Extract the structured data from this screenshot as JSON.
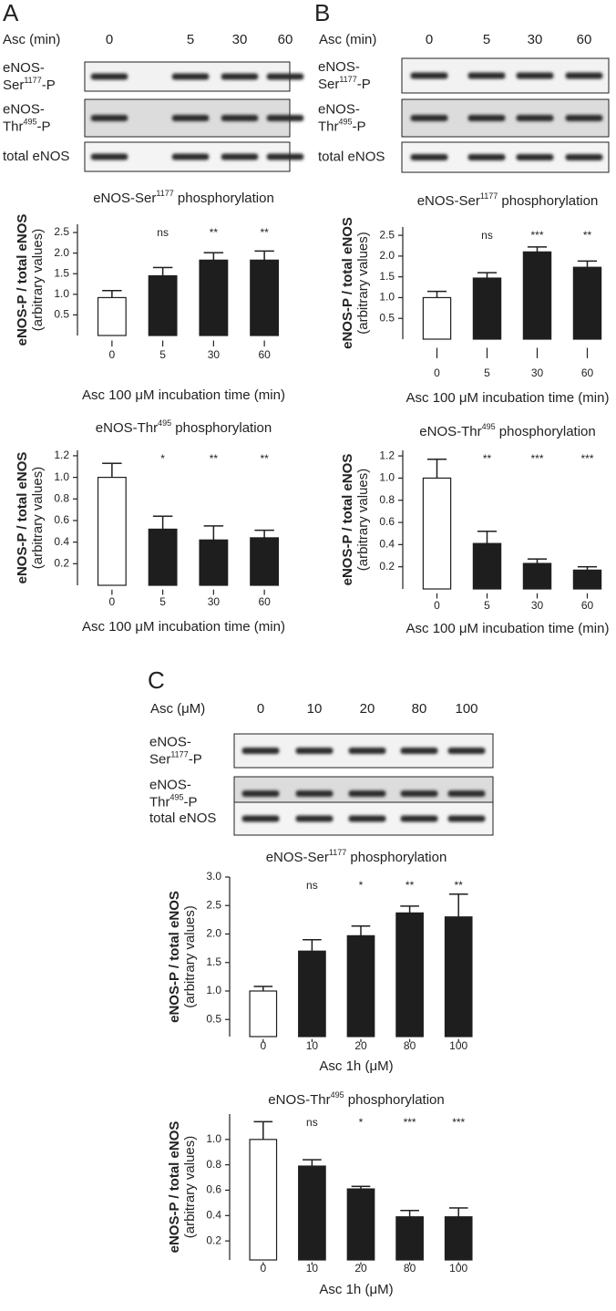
{
  "blots": [
    {
      "panel": "A",
      "header": "Asc (min)",
      "lanes": [
        "0",
        "5",
        "30",
        "60"
      ],
      "rows": [
        {
          "line1": "eNOS-",
          "pre": "Ser",
          "sup": "1177",
          "post": "-P"
        },
        {
          "line1": "eNOS-",
          "pre": "Thr",
          "sup": "495",
          "post": "-P"
        },
        {
          "line1": "total eNOS"
        }
      ]
    },
    {
      "panel": "B",
      "header": "Asc (min)",
      "lanes": [
        "0",
        "5",
        "30",
        "60"
      ],
      "rows": [
        {
          "line1": "eNOS-",
          "pre": "Ser",
          "sup": "1177",
          "post": "-P"
        },
        {
          "line1": "eNOS-",
          "pre": "Thr",
          "sup": "495",
          "post": "-P"
        },
        {
          "line1": "total eNOS"
        }
      ]
    },
    {
      "panel": "C",
      "header": "Asc (μM)",
      "lanes": [
        "0",
        "10",
        "20",
        "80",
        "100"
      ],
      "rows": [
        {
          "line1": "eNOS-",
          "pre": "Ser",
          "sup": "1177",
          "post": "-P"
        },
        {
          "line1": "eNOS-",
          "pre": "Thr",
          "sup": "495",
          "post": "-P"
        },
        {
          "line1": "total eNOS"
        }
      ]
    }
  ],
  "chart_data": [
    {
      "type": "bar",
      "title": {
        "pre": "eNOS-Ser",
        "sup": "1177",
        "post": " phosphorylation"
      },
      "ylabel": "eNOS-P / total eNOS",
      "ylabel2": "(arbitrary values)",
      "xlabel": "Asc 100 μM incubation time (min)",
      "categories": [
        "0",
        "5",
        "30",
        "60"
      ],
      "values": [
        0.92,
        1.45,
        1.83,
        1.83
      ],
      "errors": [
        0.17,
        0.2,
        0.18,
        0.22
      ],
      "colors": [
        "#ffffff",
        "#1e1e1e",
        "#1e1e1e",
        "#1e1e1e"
      ],
      "annotations": [
        null,
        "ns",
        "**",
        "**"
      ],
      "ylim": [
        0,
        2.7
      ],
      "yticks": [
        0.5,
        {
          "value": 1,
          "label": "1.0"
        },
        1.5,
        {
          "value": 2,
          "label": "2.0"
        },
        2.5
      ]
    },
    {
      "type": "bar",
      "title": {
        "pre": "eNOS-Thr",
        "sup": "495",
        "post": " phosphorylation"
      },
      "ylabel": "eNOS-P / total eNOS",
      "ylabel2": "(arbitrary values)",
      "xlabel": "Asc 100 μM incubation time (min)",
      "categories": [
        "0",
        "5",
        "30",
        "60"
      ],
      "values": [
        1.0,
        0.52,
        0.42,
        0.44
      ],
      "errors": [
        0.13,
        0.12,
        0.13,
        0.07
      ],
      "colors": [
        "#ffffff",
        "#1e1e1e",
        "#1e1e1e",
        "#1e1e1e"
      ],
      "annotations": [
        null,
        "*",
        "**",
        "**"
      ],
      "ylim": [
        0,
        1.25
      ],
      "yticks": [
        0.2,
        0.4,
        0.6,
        0.8,
        {
          "value": 1,
          "label": "1.0"
        },
        1.2
      ]
    },
    {
      "type": "bar",
      "title": {
        "pre": "eNOS-Ser",
        "sup": "1177",
        "post": " phosphorylation"
      },
      "ylabel": "eNOS-P / total eNOS",
      "ylabel2": "(arbitrary values)",
      "xlabel": "Asc 100 μM incubation time (min)",
      "categories": [
        "0",
        "5",
        "30",
        "60"
      ],
      "values": [
        1.0,
        1.47,
        2.1,
        1.73
      ],
      "errors": [
        0.15,
        0.13,
        0.12,
        0.15
      ],
      "colors": [
        "#ffffff",
        "#1e1e1e",
        "#1e1e1e",
        "#1e1e1e"
      ],
      "annotations": [
        null,
        "ns",
        "***",
        "**"
      ],
      "ylim": [
        0,
        2.7
      ],
      "yticks": [
        0.5,
        {
          "value": 1,
          "label": "1.0"
        },
        1.5,
        {
          "value": 2,
          "label": "2.0"
        },
        2.5
      ]
    },
    {
      "type": "bar",
      "title": {
        "pre": "eNOS-Thr",
        "sup": "495",
        "post": " phosphorylation"
      },
      "ylabel": "eNOS-P / total eNOS",
      "ylabel2": "(arbitrary values)",
      "xlabel": "Asc 100 μM incubation time (min)",
      "categories": [
        "0",
        "5",
        "30",
        "60"
      ],
      "values": [
        1.0,
        0.41,
        0.23,
        0.17
      ],
      "errors": [
        0.17,
        0.11,
        0.04,
        0.03
      ],
      "colors": [
        "#ffffff",
        "#1e1e1e",
        "#1e1e1e",
        "#1e1e1e"
      ],
      "annotations": [
        null,
        "**",
        "***",
        "***"
      ],
      "ylim": [
        0,
        1.25
      ],
      "yticks": [
        0.2,
        0.4,
        0.6,
        0.8,
        {
          "value": 1,
          "label": "1.0"
        },
        1.2
      ]
    },
    {
      "type": "bar",
      "title": {
        "pre": "eNOS-Ser",
        "sup": "1177",
        "post": " phosphorylation"
      },
      "ylabel": "eNOS-P / total eNOS",
      "ylabel2": "(arbitrary values)",
      "xlabel": "Asc 1h (μM)",
      "categories": [
        "0",
        "10",
        "20",
        "80",
        "100"
      ],
      "values": [
        1.0,
        1.7,
        1.97,
        2.37,
        2.3
      ],
      "errors": [
        0.08,
        0.2,
        0.17,
        0.12,
        0.4
      ],
      "colors": [
        "#ffffff",
        "#1e1e1e",
        "#1e1e1e",
        "#1e1e1e",
        "#1e1e1e"
      ],
      "annotations": [
        null,
        "ns",
        "*",
        "**",
        "**"
      ],
      "ylim": [
        0.2,
        3.0
      ],
      "yticks": [
        0.5,
        {
          "value": 1,
          "label": "1.0"
        },
        1.5,
        {
          "value": 2,
          "label": "2.0"
        },
        2.5,
        {
          "value": 3,
          "label": "3.0"
        }
      ]
    },
    {
      "type": "bar",
      "title": {
        "pre": "eNOS-Thr",
        "sup": "495",
        "post": " phosphorylation"
      },
      "ylabel": "eNOS-P / total eNOS",
      "ylabel2": "(arbitrary values)",
      "xlabel": "Asc 1h (μM)",
      "categories": [
        "0",
        "10",
        "20",
        "80",
        "100"
      ],
      "values": [
        1.0,
        0.79,
        0.61,
        0.39,
        0.39
      ],
      "errors": [
        0.14,
        0.05,
        0.02,
        0.05,
        0.07
      ],
      "colors": [
        "#ffffff",
        "#1e1e1e",
        "#1e1e1e",
        "#1e1e1e",
        "#1e1e1e"
      ],
      "annotations": [
        null,
        "ns",
        "*",
        "***",
        "***"
      ],
      "ylim": [
        0.05,
        1.2
      ],
      "yticks": [
        0.2,
        0.4,
        0.6,
        0.8,
        {
          "value": 1,
          "label": "1.0"
        }
      ]
    }
  ]
}
